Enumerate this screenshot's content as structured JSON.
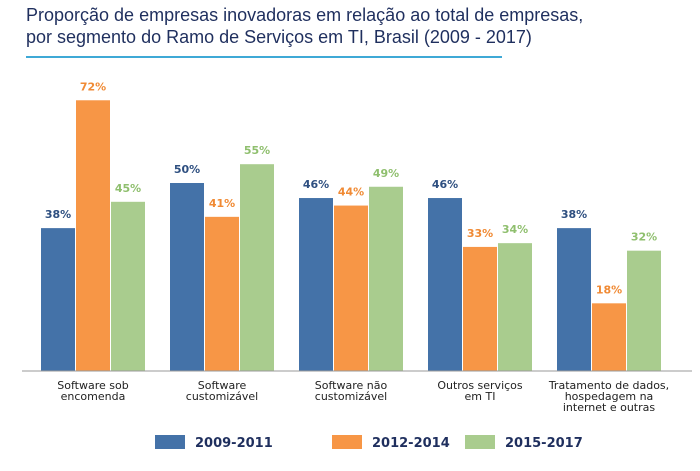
{
  "header": {
    "title_line1": "Proporção de empresas inovadoras em relação ao total de empresas,",
    "title_line2": "por segmento do Ramo de Serviços em TI, Brasil (2009 - 2017)"
  },
  "chart_data": {
    "type": "bar",
    "title": "Proporção de empresas inovadoras em relação ao total de empresas, por segmento do Ramo de Serviços em TI, Brasil (2009 - 2017)",
    "categories": [
      [
        "Software sob",
        "encomenda"
      ],
      [
        "Software",
        "customizável"
      ],
      [
        "Software não",
        "customizável"
      ],
      [
        "Outros serviços",
        "em TI"
      ],
      [
        "Tratamento de dados,",
        "hospedagem na",
        "internet e outras"
      ]
    ],
    "series": [
      {
        "name": "2009-2011",
        "color": "#4472a8",
        "labelColor": "#2e4f80",
        "values": [
          38,
          50,
          46,
          46,
          38
        ]
      },
      {
        "name": "2012-2014",
        "color": "#f79646",
        "labelColor": "#f08a34",
        "values": [
          72,
          41,
          44,
          33,
          18
        ]
      },
      {
        "name": "2015-2017",
        "color": "#a9cc8e",
        "labelColor": "#8fbf6e",
        "values": [
          45,
          55,
          49,
          34,
          32
        ]
      }
    ],
    "value_suffix": "%",
    "ylim": [
      0,
      80
    ],
    "grid": false,
    "legend_position": "bottom"
  }
}
